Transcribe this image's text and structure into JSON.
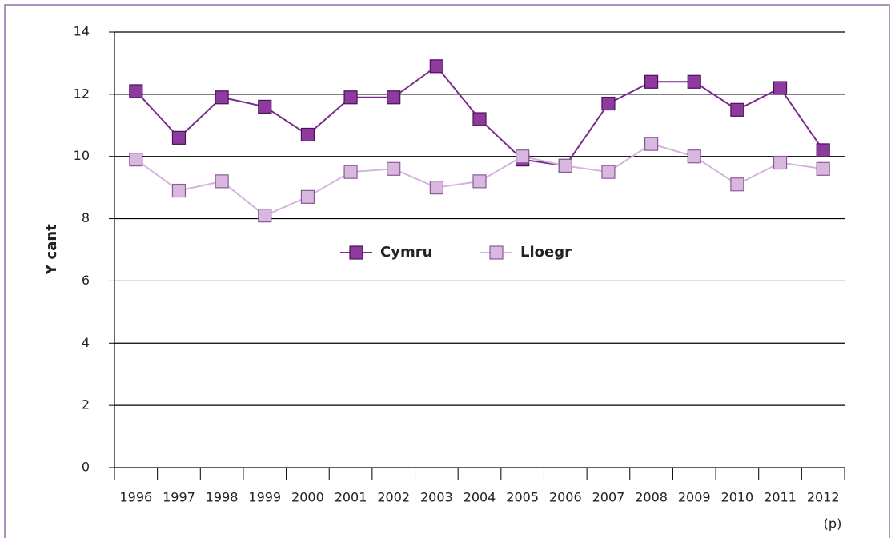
{
  "chart_data": {
    "type": "line",
    "y_label": "Y cant",
    "note": "(p)",
    "categories": [
      "1996",
      "1997",
      "1998",
      "1999",
      "2000",
      "2001",
      "2002",
      "2003",
      "2004",
      "2005",
      "2006",
      "2007",
      "2008",
      "2009",
      "2010",
      "2011",
      "2012"
    ],
    "series": [
      {
        "name": "Cymru",
        "color": "#7b2a8e",
        "marker_color": "#8e3a9e",
        "values": [
          12.1,
          10.6,
          11.9,
          11.6,
          10.7,
          11.9,
          11.9,
          12.9,
          11.2,
          9.9,
          9.7,
          11.7,
          12.4,
          12.4,
          11.5,
          12.2,
          10.2
        ]
      },
      {
        "name": "Lloegr",
        "color": "#d4b3dd",
        "marker_color": "#d9b8e0",
        "values": [
          9.9,
          8.9,
          9.2,
          8.1,
          8.7,
          9.5,
          9.6,
          9.0,
          9.2,
          10.0,
          9.7,
          9.5,
          10.4,
          10.0,
          9.1,
          9.8,
          9.6
        ]
      }
    ],
    "ylim": [
      0,
      14
    ],
    "yticks": [
      0,
      2,
      4,
      6,
      8,
      10,
      12,
      14
    ],
    "grid": true
  }
}
